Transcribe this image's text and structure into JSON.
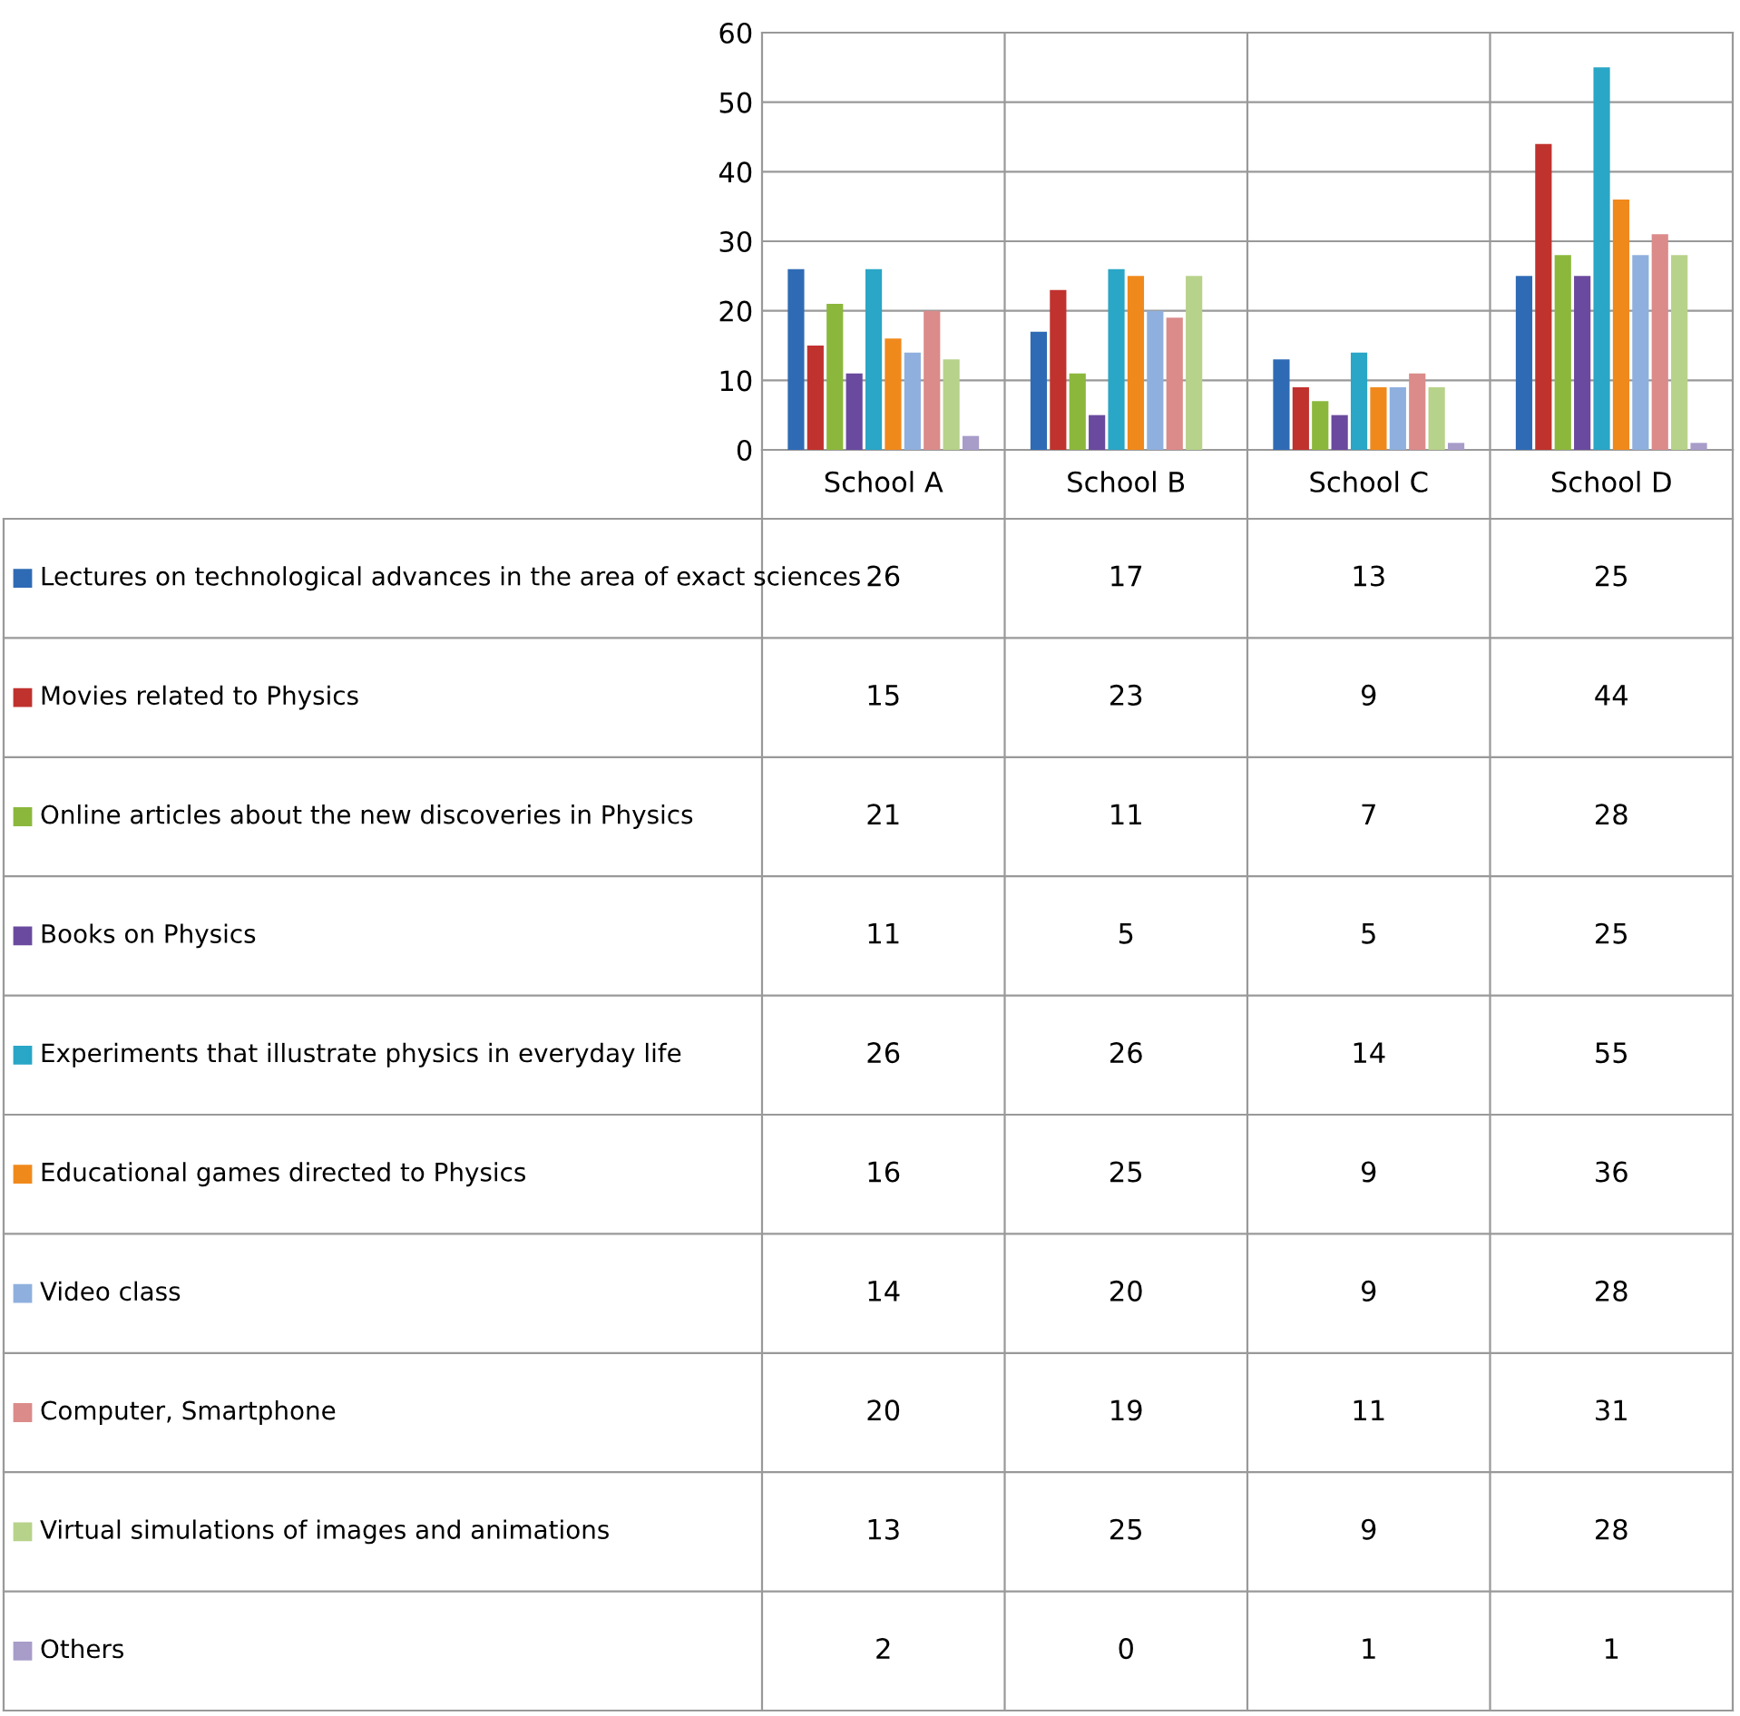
{
  "chart_data": {
    "type": "bar",
    "categories": [
      "School A",
      "School B",
      "School C",
      "School D"
    ],
    "series": [
      {
        "name": "Lectures on technological advances in the area of exact sciences",
        "color": "#2f6bb5",
        "values": [
          26,
          17,
          13,
          25
        ]
      },
      {
        "name": "Movies related to Physics",
        "color": "#c0322e",
        "values": [
          15,
          23,
          9,
          44
        ]
      },
      {
        "name": "Online articles about the new discoveries in Physics",
        "color": "#8bb83c",
        "values": [
          21,
          11,
          7,
          28
        ]
      },
      {
        "name": "Books on Physics",
        "color": "#6a4a9e",
        "values": [
          11,
          5,
          5,
          25
        ]
      },
      {
        "name": "Experiments that illustrate physics in everyday life",
        "color": "#2aa6c6",
        "values": [
          26,
          26,
          14,
          55
        ]
      },
      {
        "name": "Educational games directed to Physics",
        "color": "#f0891c",
        "values": [
          16,
          25,
          9,
          36
        ]
      },
      {
        "name": "Video class",
        "color": "#8fb0de",
        "values": [
          14,
          20,
          9,
          28
        ]
      },
      {
        "name": "Computer, Smartphone",
        "color": "#db8b8a",
        "values": [
          20,
          19,
          11,
          31
        ]
      },
      {
        "name": "Virtual simulations of images and animations",
        "color": "#b7d28a",
        "values": [
          13,
          25,
          9,
          28
        ]
      },
      {
        "name": "Others",
        "color": "#a89cc9",
        "values": [
          2,
          0,
          1,
          1
        ]
      }
    ],
    "ylim": [
      0,
      60
    ],
    "yticks": [
      0,
      10,
      20,
      30,
      40,
      50,
      60
    ],
    "grid": "y",
    "data_labels": true,
    "legend": "bottom left"
  }
}
